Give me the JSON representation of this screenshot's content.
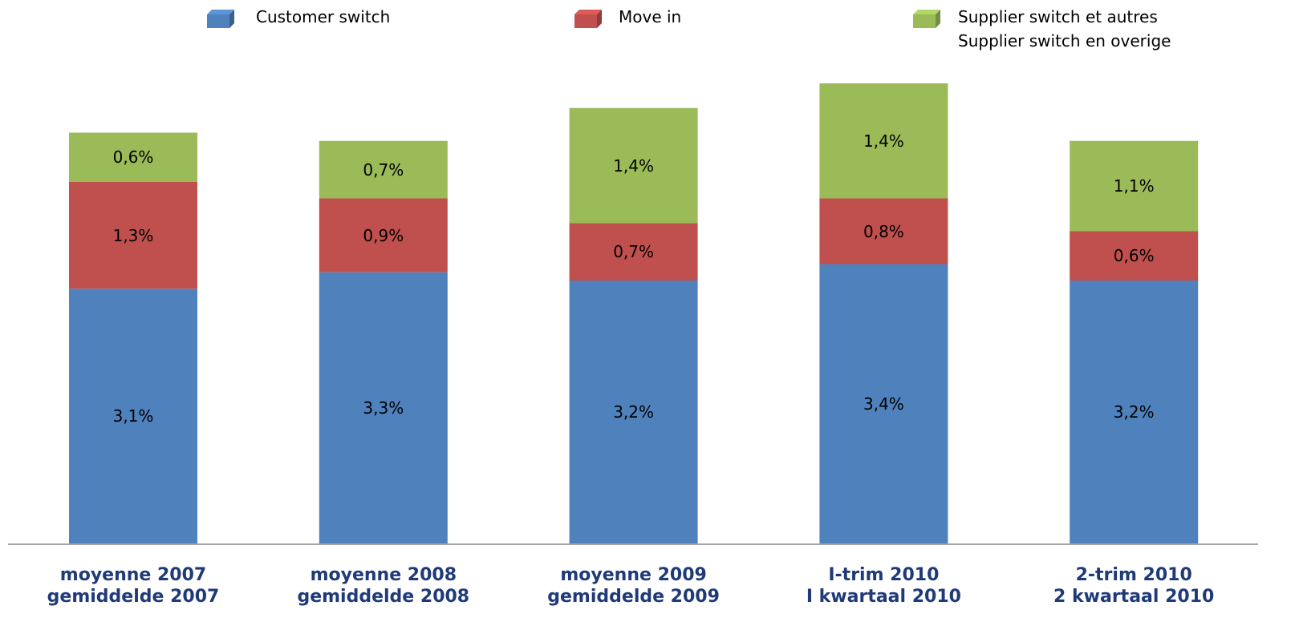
{
  "chart_data": {
    "type": "stacked-bar",
    "categories": [
      "moyenne 2007\ngemiddelde 2007",
      "moyenne 2008\ngemiddelde 2008",
      "moyenne 2009\ngemiddelde 2009",
      "I-trim 2010\nI kwartaal 2010",
      "2-trim 2010\n2 kwartaal 2010"
    ],
    "series": [
      {
        "name": "Customer switch",
        "color": "#4f81bd",
        "values": [
          3.1,
          3.3,
          3.2,
          3.4,
          3.2
        ],
        "value_labels": [
          "3,1%",
          "3,3%",
          "3,2%",
          "3,4%",
          "3,2%"
        ]
      },
      {
        "name": "Move in",
        "color": "#c0504d",
        "values": [
          1.3,
          0.9,
          0.7,
          0.8,
          0.6
        ],
        "value_labels": [
          "1,3%",
          "0,9%",
          "0,7%",
          "0,8%",
          "0,6%"
        ]
      },
      {
        "name": "Supplier switch et autres\nSupplier switch en overige",
        "color": "#9bbb59",
        "values": [
          0.6,
          0.7,
          1.4,
          1.4,
          1.1
        ],
        "value_labels": [
          "0,6%",
          "0,7%",
          "1,4%",
          "1,4%",
          "1,1%"
        ]
      }
    ]
  }
}
